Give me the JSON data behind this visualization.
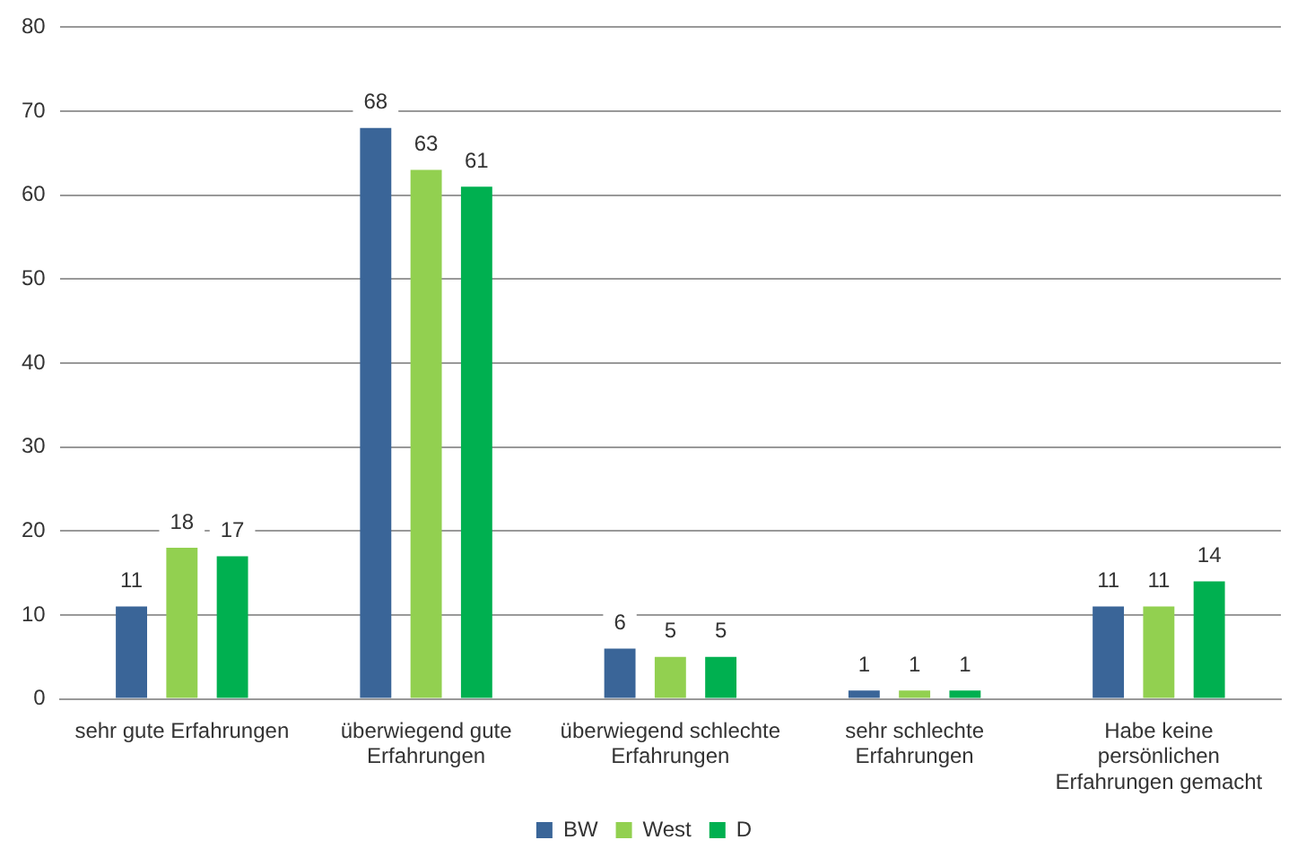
{
  "chart_data": {
    "type": "bar",
    "categories": [
      "sehr gute Erfahrungen",
      "überwiegend gute Erfahrungen",
      "überwiegend schlechte Erfahrungen",
      "sehr schlechte Erfahrungen",
      "Habe keine persönlichen Erfahrungen gemacht"
    ],
    "series": [
      {
        "name": "BW",
        "color": "#3a6598",
        "values": [
          11,
          68,
          6,
          1,
          11
        ]
      },
      {
        "name": "West",
        "color": "#92d050",
        "values": [
          18,
          63,
          5,
          1,
          11
        ]
      },
      {
        "name": "D",
        "color": "#00b050",
        "values": [
          17,
          61,
          5,
          1,
          14
        ]
      }
    ],
    "ylim": [
      0,
      80
    ],
    "yticks": [
      0,
      10,
      20,
      30,
      40,
      50,
      60,
      70,
      80
    ],
    "grid": "y",
    "legend": "bottom",
    "data_labels": true
  }
}
